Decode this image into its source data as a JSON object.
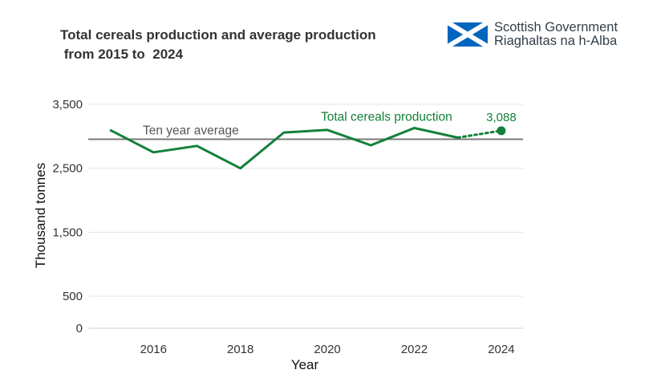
{
  "chart_data": {
    "type": "line",
    "title": "Total cereals production and average production\n from 2015 to  2024",
    "xlabel": "Year",
    "ylabel": "Thousand tonnes",
    "ylim": [
      0,
      3500
    ],
    "xlim": [
      2014.5,
      2024.5
    ],
    "x_ticks": [
      "2016",
      "2018",
      "2020",
      "2022",
      "2024"
    ],
    "y_ticks": [
      "0",
      "500",
      "1,500",
      "2,500",
      "3,500"
    ],
    "grid": true,
    "series": [
      {
        "name": "Total cereals production",
        "x": [
          2015,
          2016,
          2017,
          2018,
          2019,
          2020,
          2021,
          2022,
          2023,
          2024
        ],
        "values": [
          3100,
          2750,
          2850,
          2500,
          3060,
          3100,
          2860,
          3130,
          2980,
          3088
        ],
        "color": "#13803b",
        "dotted_segment_from": 2023
      }
    ],
    "reference_line": {
      "label": "Ten year average",
      "value": 2955,
      "color": "#7a7a7a"
    },
    "annotations": [
      {
        "label": "3,088",
        "x": 2024,
        "y": 3088
      }
    ]
  },
  "logo": {
    "line1": "Scottish Government",
    "line2": "Riaghaltas na h-Alba",
    "flag_color": "#0065bd"
  }
}
